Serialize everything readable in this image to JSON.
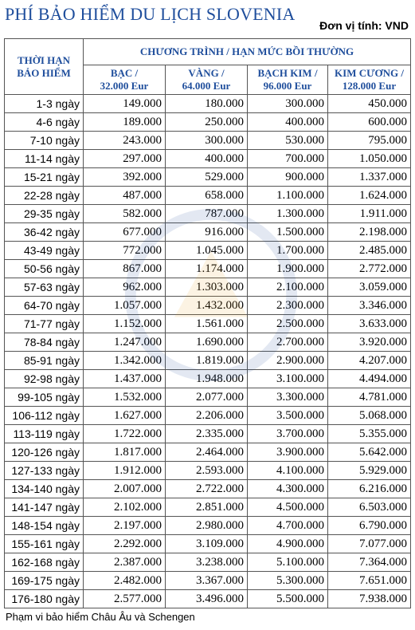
{
  "title": "PHÍ BẢO HIỂM DU LỊCH SLOVENIA",
  "unit": "Đơn vị tính: VND",
  "header": {
    "duration": [
      "THỜI HẠN",
      "BẢO HIỂM"
    ],
    "program": "CHƯƠNG TRÌNH / HẠN MỨC BỒI THƯỜNG",
    "plans": [
      [
        "BẠC /",
        "32.000 Eur"
      ],
      [
        "VÀNG /",
        "64.000 Eur"
      ],
      [
        "BẠCH KIM /",
        "96.000 Eur"
      ],
      [
        "KIM CƯƠNG /",
        "128.000 Eur"
      ]
    ]
  },
  "rows": [
    [
      "1-3 ngày",
      "149.000",
      "180.000",
      "300.000",
      "450.000"
    ],
    [
      "4-6 ngày",
      "189.000",
      "250.000",
      "400.000",
      "600.000"
    ],
    [
      "7-10 ngày",
      "243.000",
      "300.000",
      "530.000",
      "795.000"
    ],
    [
      "11-14 ngày",
      "297.000",
      "400.000",
      "700.000",
      "1.050.000"
    ],
    [
      "15-21 ngày",
      "392.000",
      "529.000",
      "900.000",
      "1.337.000"
    ],
    [
      "22-28 ngày",
      "487.000",
      "658.000",
      "1.100.000",
      "1.624.000"
    ],
    [
      "29-35 ngày",
      "582.000",
      "787.000",
      "1.300.000",
      "1.911.000"
    ],
    [
      "36-42 ngày",
      "677.000",
      "916.000",
      "1.500.000",
      "2.198.000"
    ],
    [
      "43-49 ngày",
      "772.000",
      "1.045.000",
      "1.700.000",
      "2.485.000"
    ],
    [
      "50-56 ngày",
      "867.000",
      "1.174.000",
      "1.900.000",
      "2.772.000"
    ],
    [
      "57-63 ngày",
      "962.000",
      "1.303.000",
      "2.100.000",
      "3.059.000"
    ],
    [
      "64-70 ngày",
      "1.057.000",
      "1.432.000",
      "2.300.000",
      "3.346.000"
    ],
    [
      "71-77 ngày",
      "1.152.000",
      "1.561.000",
      "2.500.000",
      "3.633.000"
    ],
    [
      "78-84 ngày",
      "1.247.000",
      "1.690.000",
      "2.700.000",
      "3.920.000"
    ],
    [
      "85-91 ngày",
      "1.342.000",
      "1.819.000",
      "2.900.000",
      "4.207.000"
    ],
    [
      "92-98 ngày",
      "1.437.000",
      "1.948.000",
      "3.100.000",
      "4.494.000"
    ],
    [
      "99-105 ngày",
      "1.532.000",
      "2.077.000",
      "3.300.000",
      "4.781.000"
    ],
    [
      "106-112 ngày",
      "1.627.000",
      "2.206.000",
      "3.500.000",
      "5.068.000"
    ],
    [
      "113-119 ngày",
      "1.722.000",
      "2.335.000",
      "3.700.000",
      "5.355.000"
    ],
    [
      "120-126 ngày",
      "1.817.000",
      "2.464.000",
      "3.900.000",
      "5.642.000"
    ],
    [
      "127-133 ngày",
      "1.912.000",
      "2.593.000",
      "4.100.000",
      "5.929.000"
    ],
    [
      "134-140 ngày",
      "2.007.000",
      "2.722.000",
      "4.300.000",
      "6.216.000"
    ],
    [
      "141-147 ngày",
      "2.102.000",
      "2.851.000",
      "4.500.000",
      "6.503.000"
    ],
    [
      "148-154 ngày",
      "2.197.000",
      "2.980.000",
      "4.700.000",
      "6.790.000"
    ],
    [
      "155-161 ngày",
      "2.292.000",
      "3.109.000",
      "4.900.000",
      "7.077.000"
    ],
    [
      "162-168 ngày",
      "2.387.000",
      "3.238.000",
      "5.100.000",
      "7.364.000"
    ],
    [
      "169-175 ngày",
      "2.482.000",
      "3.367.000",
      "5.300.000",
      "7.651.000"
    ],
    [
      "176-180 ngày",
      "2.577.000",
      "3.496.000",
      "5.500.000",
      "7.938.000"
    ]
  ],
  "footer": "Phạm vi bảo hiểm Châu Âu và Schengen",
  "colors": {
    "title": "#1f4e9c",
    "header": "#1f4e9c",
    "border": "#555555"
  },
  "watermark_icon": "baoviet-logo-watermark"
}
